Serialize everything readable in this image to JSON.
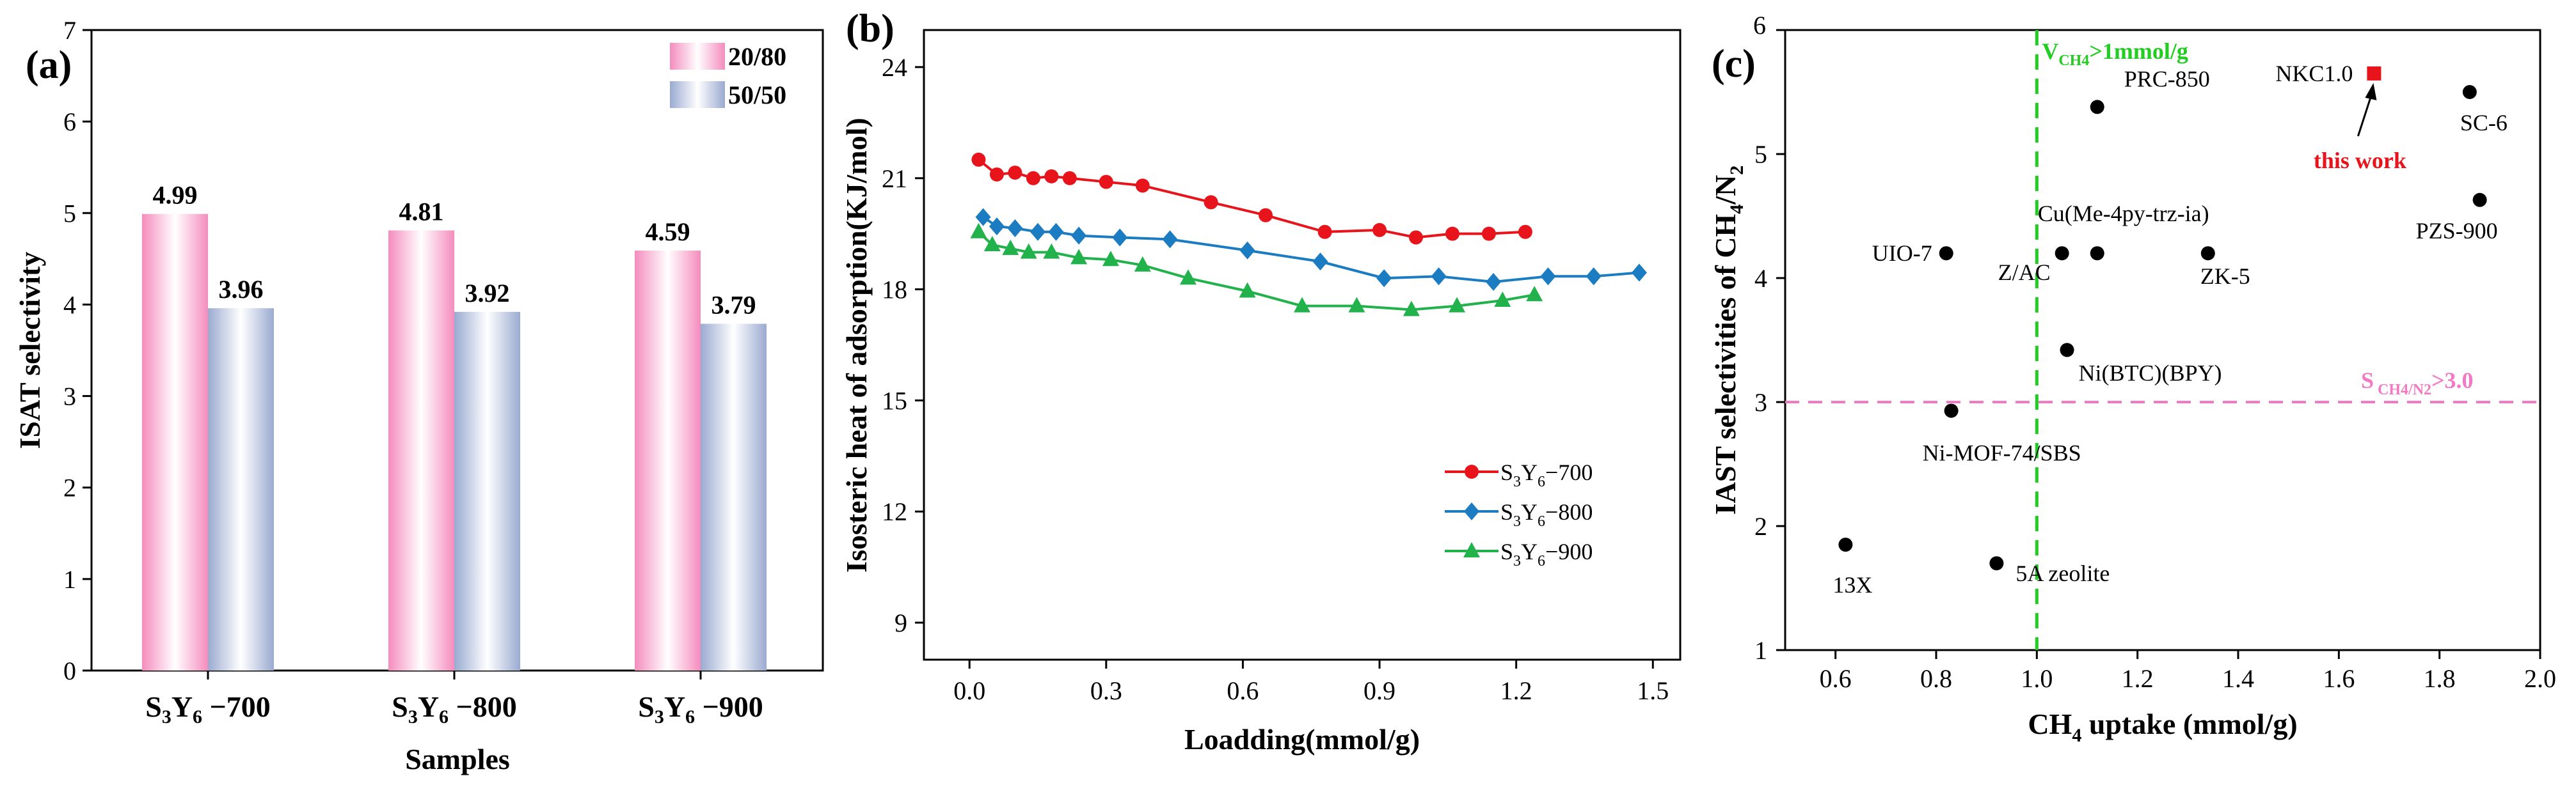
{
  "chart_data": [
    {
      "type": "bar",
      "panel_label": "(a)",
      "categories": [
        {
          "main": "S",
          "s1": "3",
          "mid": "Y",
          "s2": "6",
          "suffix": " −700"
        },
        {
          "main": "S",
          "s1": "3",
          "mid": "Y",
          "s2": "6",
          "suffix": " −800"
        },
        {
          "main": "S",
          "s1": "3",
          "mid": "Y",
          "s2": "6",
          "suffix": " −900"
        }
      ],
      "series": [
        {
          "name": "20/80",
          "values": [
            4.99,
            4.81,
            4.59
          ],
          "value_labels": [
            "4.99",
            "4.81",
            "4.59"
          ],
          "color": "#f4a6c8"
        },
        {
          "name": "50/50",
          "values": [
            3.96,
            3.92,
            3.79
          ],
          "value_labels": [
            "3.96",
            "3.92",
            "3.79"
          ],
          "color": "#a9b7d6"
        }
      ],
      "xlabel": "Samples",
      "ylabel": "ISAT selectivity",
      "ylim": [
        0,
        7
      ],
      "yticks": [
        0,
        1,
        2,
        3,
        4,
        5,
        6,
        7
      ],
      "legend": "top-right"
    },
    {
      "type": "line",
      "panel_label": "(b)",
      "xlabel": "Loadding(mmol/g)",
      "ylabel": "Isosteric heat of adsorption(KJ/mol)",
      "xlim": [
        -0.1,
        1.56
      ],
      "ylim": [
        8,
        25
      ],
      "xticks": [
        "0.0",
        "0.3",
        "0.6",
        "0.9",
        "1.2",
        "1.5"
      ],
      "yticks": [
        "9",
        "12",
        "15",
        "18",
        "21",
        "24"
      ],
      "series": [
        {
          "name_main": "S",
          "name_s1": "3",
          "name_mid": "Y",
          "name_s2": "6",
          "name_suffix": "−700",
          "color": "#e8141b",
          "marker": "circle",
          "x": [
            0.02,
            0.06,
            0.1,
            0.14,
            0.18,
            0.22,
            0.3,
            0.38,
            0.53,
            0.65,
            0.78,
            0.9,
            0.98,
            1.06,
            1.14,
            1.22
          ],
          "y": [
            21.5,
            21.1,
            21.15,
            21.0,
            21.05,
            21.0,
            20.9,
            20.8,
            20.35,
            20.0,
            19.55,
            19.6,
            19.4,
            19.5,
            19.5,
            19.55
          ]
        },
        {
          "name_main": "S",
          "name_s1": "3",
          "name_mid": "Y",
          "name_s2": "6",
          "name_suffix": "−800",
          "color": "#1b7cc1",
          "marker": "diamond",
          "x": [
            0.03,
            0.06,
            0.1,
            0.15,
            0.19,
            0.24,
            0.33,
            0.44,
            0.61,
            0.77,
            0.91,
            1.03,
            1.15,
            1.27,
            1.37,
            1.47
          ],
          "y": [
            19.95,
            19.7,
            19.65,
            19.55,
            19.55,
            19.45,
            19.4,
            19.35,
            19.05,
            18.75,
            18.3,
            18.35,
            18.2,
            18.35,
            18.35,
            18.45
          ]
        },
        {
          "name_main": "S",
          "name_s1": "3",
          "name_mid": "Y",
          "name_s2": "6",
          "name_suffix": "−900",
          "color": "#22b24c",
          "marker": "triangle",
          "x": [
            0.02,
            0.05,
            0.09,
            0.13,
            0.18,
            0.24,
            0.31,
            0.38,
            0.48,
            0.61,
            0.73,
            0.85,
            0.97,
            1.07,
            1.17,
            1.24
          ],
          "y": [
            19.55,
            19.2,
            19.1,
            19.0,
            19.0,
            18.85,
            18.8,
            18.65,
            18.3,
            17.95,
            17.55,
            17.55,
            17.45,
            17.55,
            17.7,
            17.85
          ]
        }
      ],
      "legend": "center-right"
    },
    {
      "type": "scatter",
      "panel_label": "(c)",
      "xlabel_main": "CH",
      "xlabel_sub": "4",
      "xlabel_rest": " uptake (mmol/g)",
      "ylabel_main": "IAST selectivities of CH",
      "ylabel_sub1": "4",
      "ylabel_mid": "/N",
      "ylabel_sub2": "2",
      "xlim": [
        0.5,
        2.0
      ],
      "ylim": [
        1,
        6
      ],
      "xticks": [
        "0.6",
        "0.8",
        "1.0",
        "1.2",
        "1.4",
        "1.6",
        "1.8",
        "2.0"
      ],
      "yticks": [
        "1",
        "2",
        "3",
        "4",
        "5",
        "6"
      ],
      "points": [
        {
          "label": "13X",
          "x": 0.62,
          "y": 1.85,
          "color": "#000000"
        },
        {
          "label": "5A zeolite",
          "x": 0.92,
          "y": 1.7,
          "color": "#000000"
        },
        {
          "label": "Ni-MOF-74/SBS",
          "x": 0.83,
          "y": 2.93,
          "color": "#000000"
        },
        {
          "label": "UIO-7",
          "x": 0.82,
          "y": 4.2,
          "color": "#000000"
        },
        {
          "label": "Z/AC",
          "x": 1.05,
          "y": 4.2,
          "color": "#000000"
        },
        {
          "label": "Cu(Me-4py-trz-ia)",
          "x": 1.12,
          "y": 4.2,
          "color": "#000000"
        },
        {
          "label": "Ni(BTC)(BPY)",
          "x": 1.06,
          "y": 3.42,
          "color": "#000000"
        },
        {
          "label": "PRC-850",
          "x": 1.12,
          "y": 5.38,
          "color": "#000000"
        },
        {
          "label": "ZK-5",
          "x": 1.34,
          "y": 4.2,
          "color": "#000000"
        },
        {
          "label": "NKC1.0",
          "x": 1.67,
          "y": 5.65,
          "color": "#e8141b"
        },
        {
          "label": "SC-6",
          "x": 1.86,
          "y": 5.5,
          "color": "#000000"
        },
        {
          "label": "PZS-900",
          "x": 1.88,
          "y": 4.63,
          "color": "#000000"
        }
      ],
      "annotations": {
        "this_work": "this work",
        "vline": {
          "x": 1.0,
          "color": "#22cc22",
          "text_main": "V",
          "text_sub": "CH4",
          "text_rest": ">1mmol/g"
        },
        "hline": {
          "y": 3.0,
          "color": "#f27ac4",
          "text_main": "S",
          "text_sub": " CH4/N2",
          "text_rest": ">3.0"
        }
      }
    }
  ]
}
